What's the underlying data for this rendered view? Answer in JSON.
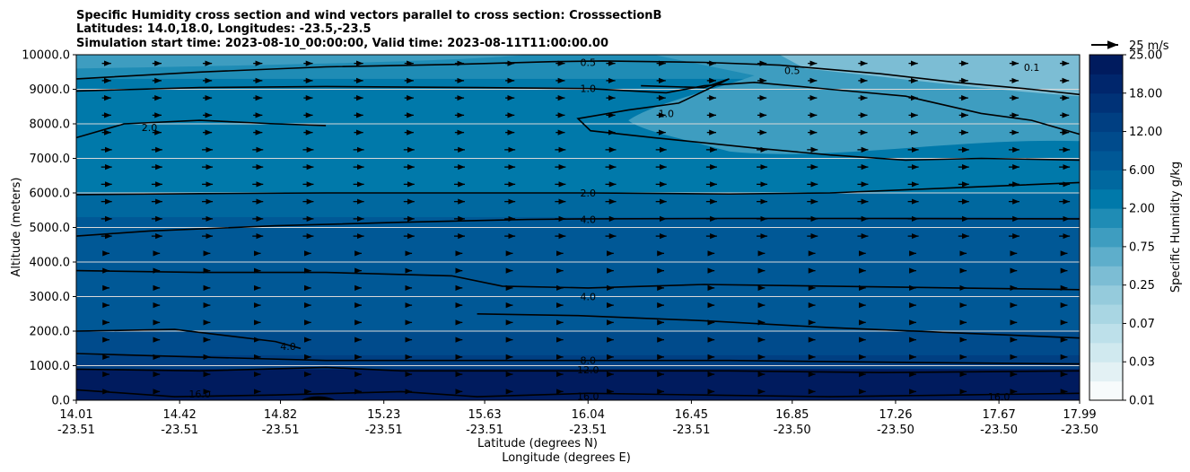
{
  "chart_data": {
    "type": "heatmap",
    "title_lines": [
      "Specific Humidity cross section and wind vectors parallel to cross section: CrosssectionB",
      "Latitudes: 14.0,18.0, Longitudes: -23.5,-23.5",
      "Simulation start time: 2023-08-10_00:00:00, Valid time: 2023-08-11T11:00:00.00"
    ],
    "ylabel": "Altitude (meters)",
    "xlabel_lat": "Latitude (degrees N)",
    "xlabel_lon": "Longitude (degrees E)",
    "ylim": [
      0,
      10000
    ],
    "y_ticks": [
      0,
      1000,
      2000,
      3000,
      4000,
      5000,
      6000,
      7000,
      8000,
      9000,
      10000
    ],
    "y_tick_labels": [
      "0.0",
      "1000.0",
      "2000.0",
      "3000.0",
      "4000.0",
      "5000.0",
      "6000.0",
      "7000.0",
      "8000.0",
      "9000.0",
      "10000.0"
    ],
    "xlim": [
      14.01,
      17.99
    ],
    "x_ticks": [
      14.01,
      14.42,
      14.82,
      15.23,
      15.63,
      16.04,
      16.45,
      16.85,
      17.26,
      17.67,
      17.99
    ],
    "x_tick_lat_labels": [
      "14.01",
      "14.42",
      "14.82",
      "15.23",
      "15.63",
      "16.04",
      "16.45",
      "16.85",
      "17.26",
      "17.67",
      "17.99"
    ],
    "x_tick_lon_labels": [
      "-23.51",
      "-23.51",
      "-23.51",
      "-23.51",
      "-23.51",
      "-23.51",
      "-23.51",
      "-23.50",
      "-23.50",
      "-23.50",
      "-23.50"
    ],
    "colorbar": {
      "label": "Specific Humidity g/kg",
      "levels": [
        0.01,
        0.02,
        0.03,
        0.05,
        0.07,
        0.1,
        0.25,
        0.5,
        0.75,
        1.0,
        2.0,
        4.0,
        6.0,
        8.0,
        12.0,
        14.0,
        18.0,
        20.0,
        25.0
      ],
      "tick_labels": [
        "0.01",
        "0.03",
        "0.07",
        "0.25",
        "0.75",
        "2.00",
        "6.00",
        "12.00",
        "18.00",
        "25.00"
      ],
      "colors": [
        "#f7fbfc",
        "#e3f1f4",
        "#d0e9ef",
        "#bde0ea",
        "#a9d6e3",
        "#95cbdc",
        "#7cbdd4",
        "#5eaecb",
        "#3e9dc0",
        "#1f8cb5",
        "#0079aa",
        "#00689f",
        "#005896",
        "#004b8c",
        "#003f82",
        "#003277",
        "#00266c",
        "#001b5e"
      ]
    },
    "contours": [
      {
        "level": "0.1",
        "label": "0.1"
      },
      {
        "level": "0.5",
        "label": "0.5"
      },
      {
        "level": "1.0",
        "label": "1.0"
      },
      {
        "level": "2.0",
        "label": "2.0"
      },
      {
        "level": "4.0",
        "label": "4.0"
      },
      {
        "level": "8.0",
        "label": "8.0"
      },
      {
        "level": "12.0",
        "label": "12.0"
      },
      {
        "level": "16.0",
        "label": "16.0"
      }
    ],
    "wind_reference": {
      "label": "25 m/s",
      "speed_ms": 25
    }
  }
}
